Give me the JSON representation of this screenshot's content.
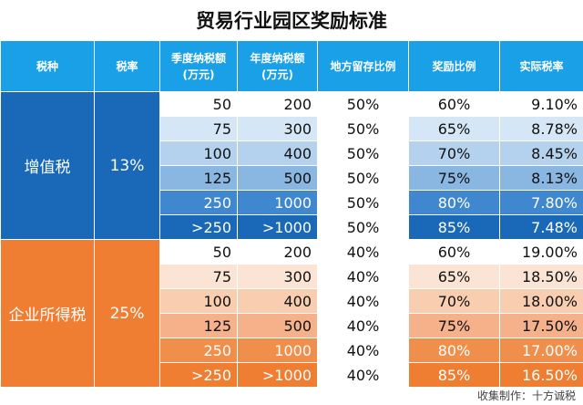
{
  "title": "贸易行业园区奖励标准",
  "headers": [
    "税种",
    "税率",
    "季度纳税额\n(万元)",
    "年度纳税额\n(万元)",
    "地方留存比例",
    "奖励比例",
    "实际税率"
  ],
  "groups": [
    {
      "name": "增值税",
      "rate": "13%",
      "colors": [
        "#ffffff",
        "#d5e6f6",
        "#b4d2ee",
        "#8ab7e2",
        "#3f87cf",
        "#1a68b8"
      ],
      "rows": [
        {
          "q": "50",
          "y": "200",
          "local": "50%",
          "reward": "60%",
          "actual": "9.10%"
        },
        {
          "q": "75",
          "y": "300",
          "local": "50%",
          "reward": "65%",
          "actual": "8.78%"
        },
        {
          "q": "100",
          "y": "400",
          "local": "50%",
          "reward": "70%",
          "actual": "8.45%"
        },
        {
          "q": "125",
          "y": "500",
          "local": "50%",
          "reward": "75%",
          "actual": "8.13%"
        },
        {
          "q": "250",
          "y": "1000",
          "local": "50%",
          "reward": "80%",
          "actual": "7.80%"
        },
        {
          "q": ">250",
          "y": ">1000",
          "local": "50%",
          "reward": "85%",
          "actual": "7.48%"
        }
      ]
    },
    {
      "name": "企业所得税",
      "rate": "25%",
      "colors": [
        "#ffffff",
        "#fbe4d4",
        "#f8cdb0",
        "#f5b28a",
        "#f08e4c",
        "#ef7e33"
      ],
      "rows": [
        {
          "q": "50",
          "y": "200",
          "local": "40%",
          "reward": "60%",
          "actual": "19.00%"
        },
        {
          "q": "75",
          "y": "300",
          "local": "40%",
          "reward": "65%",
          "actual": "18.50%"
        },
        {
          "q": "100",
          "y": "400",
          "local": "40%",
          "reward": "70%",
          "actual": "18.00%"
        },
        {
          "q": "125",
          "y": "500",
          "local": "40%",
          "reward": "75%",
          "actual": "17.50%"
        },
        {
          "q": "250",
          "y": "1000",
          "local": "40%",
          "reward": "80%",
          "actual": "17.00%"
        },
        {
          "q": ">250",
          "y": ">1000",
          "local": "40%",
          "reward": "85%",
          "actual": "16.50%"
        }
      ]
    }
  ],
  "footer": "收集制作：十方诚税"
}
